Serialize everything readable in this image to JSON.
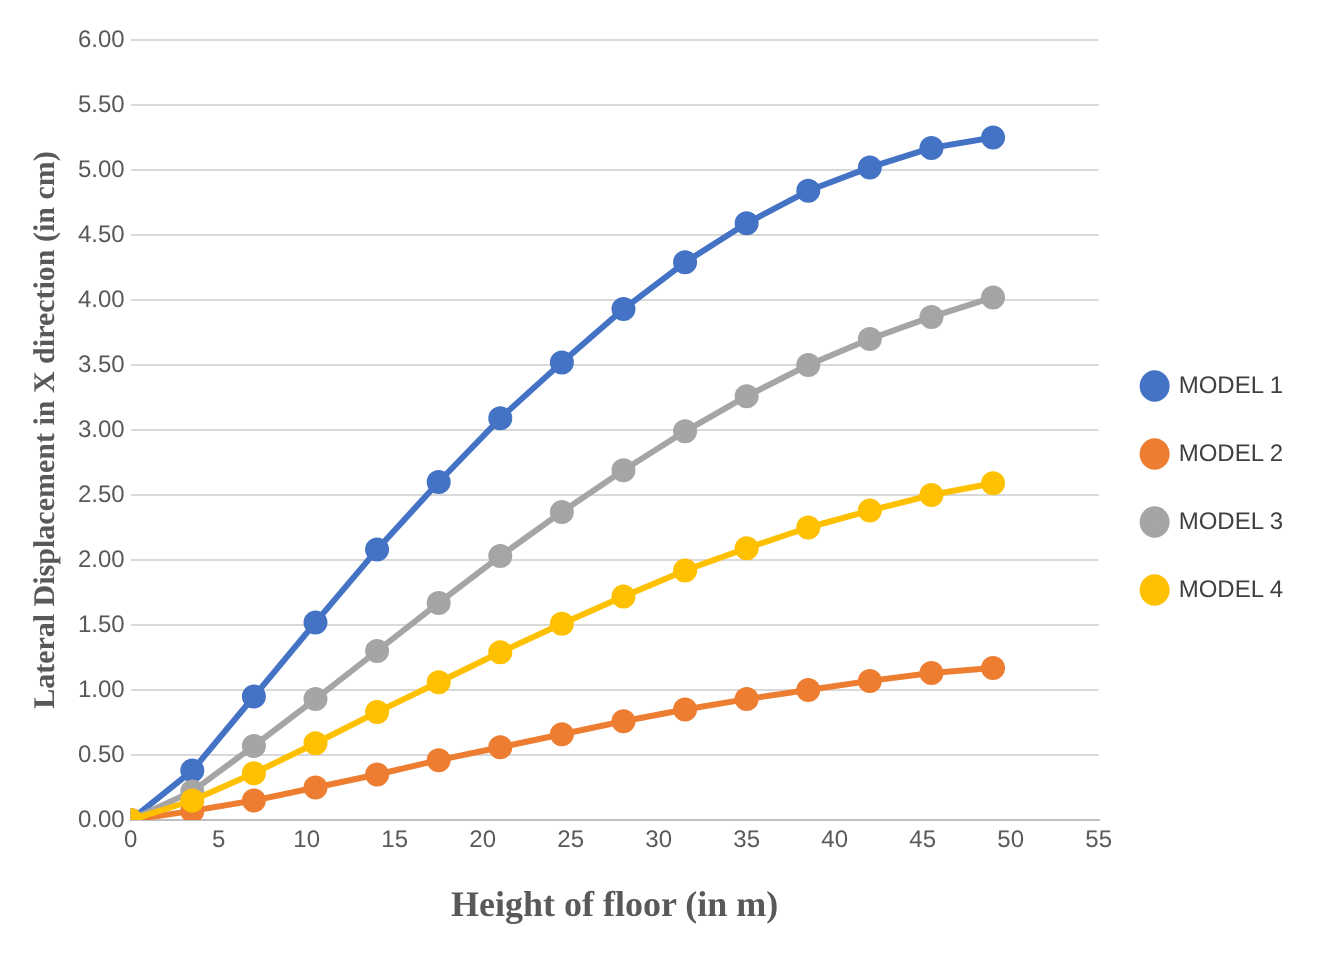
{
  "chart_data": {
    "type": "line",
    "xlabel": "Height of floor (in m)",
    "ylabel": "Lateral Displacement in X direction (in cm)",
    "x": [
      0,
      3.5,
      7,
      10.5,
      14,
      17.5,
      21,
      24.5,
      28,
      31.5,
      35,
      38.5,
      42,
      45.5,
      49
    ],
    "series": [
      {
        "name": "MODEL 1",
        "color": "#4472c4",
        "values": [
          0,
          0.38,
          0.95,
          1.52,
          2.08,
          2.6,
          3.09,
          3.52,
          3.93,
          4.29,
          4.59,
          4.84,
          5.02,
          5.17,
          5.25
        ]
      },
      {
        "name": "MODEL 2",
        "color": "#ed7d31",
        "values": [
          0,
          0.07,
          0.15,
          0.25,
          0.35,
          0.46,
          0.56,
          0.66,
          0.76,
          0.85,
          0.93,
          1.0,
          1.07,
          1.13,
          1.17
        ]
      },
      {
        "name": "MODEL 3",
        "color": "#a5a5a5",
        "values": [
          0,
          0.22,
          0.57,
          0.93,
          1.3,
          1.67,
          2.03,
          2.37,
          2.69,
          2.99,
          3.26,
          3.5,
          3.7,
          3.87,
          4.02
        ]
      },
      {
        "name": "MODEL 4",
        "color": "#ffc000",
        "values": [
          0,
          0.15,
          0.36,
          0.59,
          0.83,
          1.06,
          1.29,
          1.51,
          1.72,
          1.92,
          2.09,
          2.25,
          2.38,
          2.5,
          2.59
        ]
      }
    ],
    "xlim": [
      0,
      55
    ],
    "xticks": [
      0,
      5,
      10,
      15,
      20,
      25,
      30,
      35,
      40,
      45,
      50,
      55
    ],
    "ylim": [
      0,
      6
    ],
    "yticks": [
      {
        "value": 0,
        "label": "0.00"
      },
      {
        "value": 0.5,
        "label": "0.50"
      },
      {
        "value": 1,
        "label": "1.00"
      },
      {
        "value": 1.5,
        "label": "1.50"
      },
      {
        "value": 2,
        "label": "2.00"
      },
      {
        "value": 2.5,
        "label": "2.50"
      },
      {
        "value": 3,
        "label": "3.00"
      },
      {
        "value": 3.5,
        "label": "3.50"
      },
      {
        "value": 4,
        "label": "4.00"
      },
      {
        "value": 4.5,
        "label": "4.50"
      },
      {
        "value": 5,
        "label": "5.00"
      },
      {
        "value": 5.5,
        "label": "5.50"
      },
      {
        "value": 6,
        "label": "6.00"
      }
    ],
    "grid": "y",
    "legend": "right",
    "marker": "circle",
    "line_style": "solid"
  }
}
